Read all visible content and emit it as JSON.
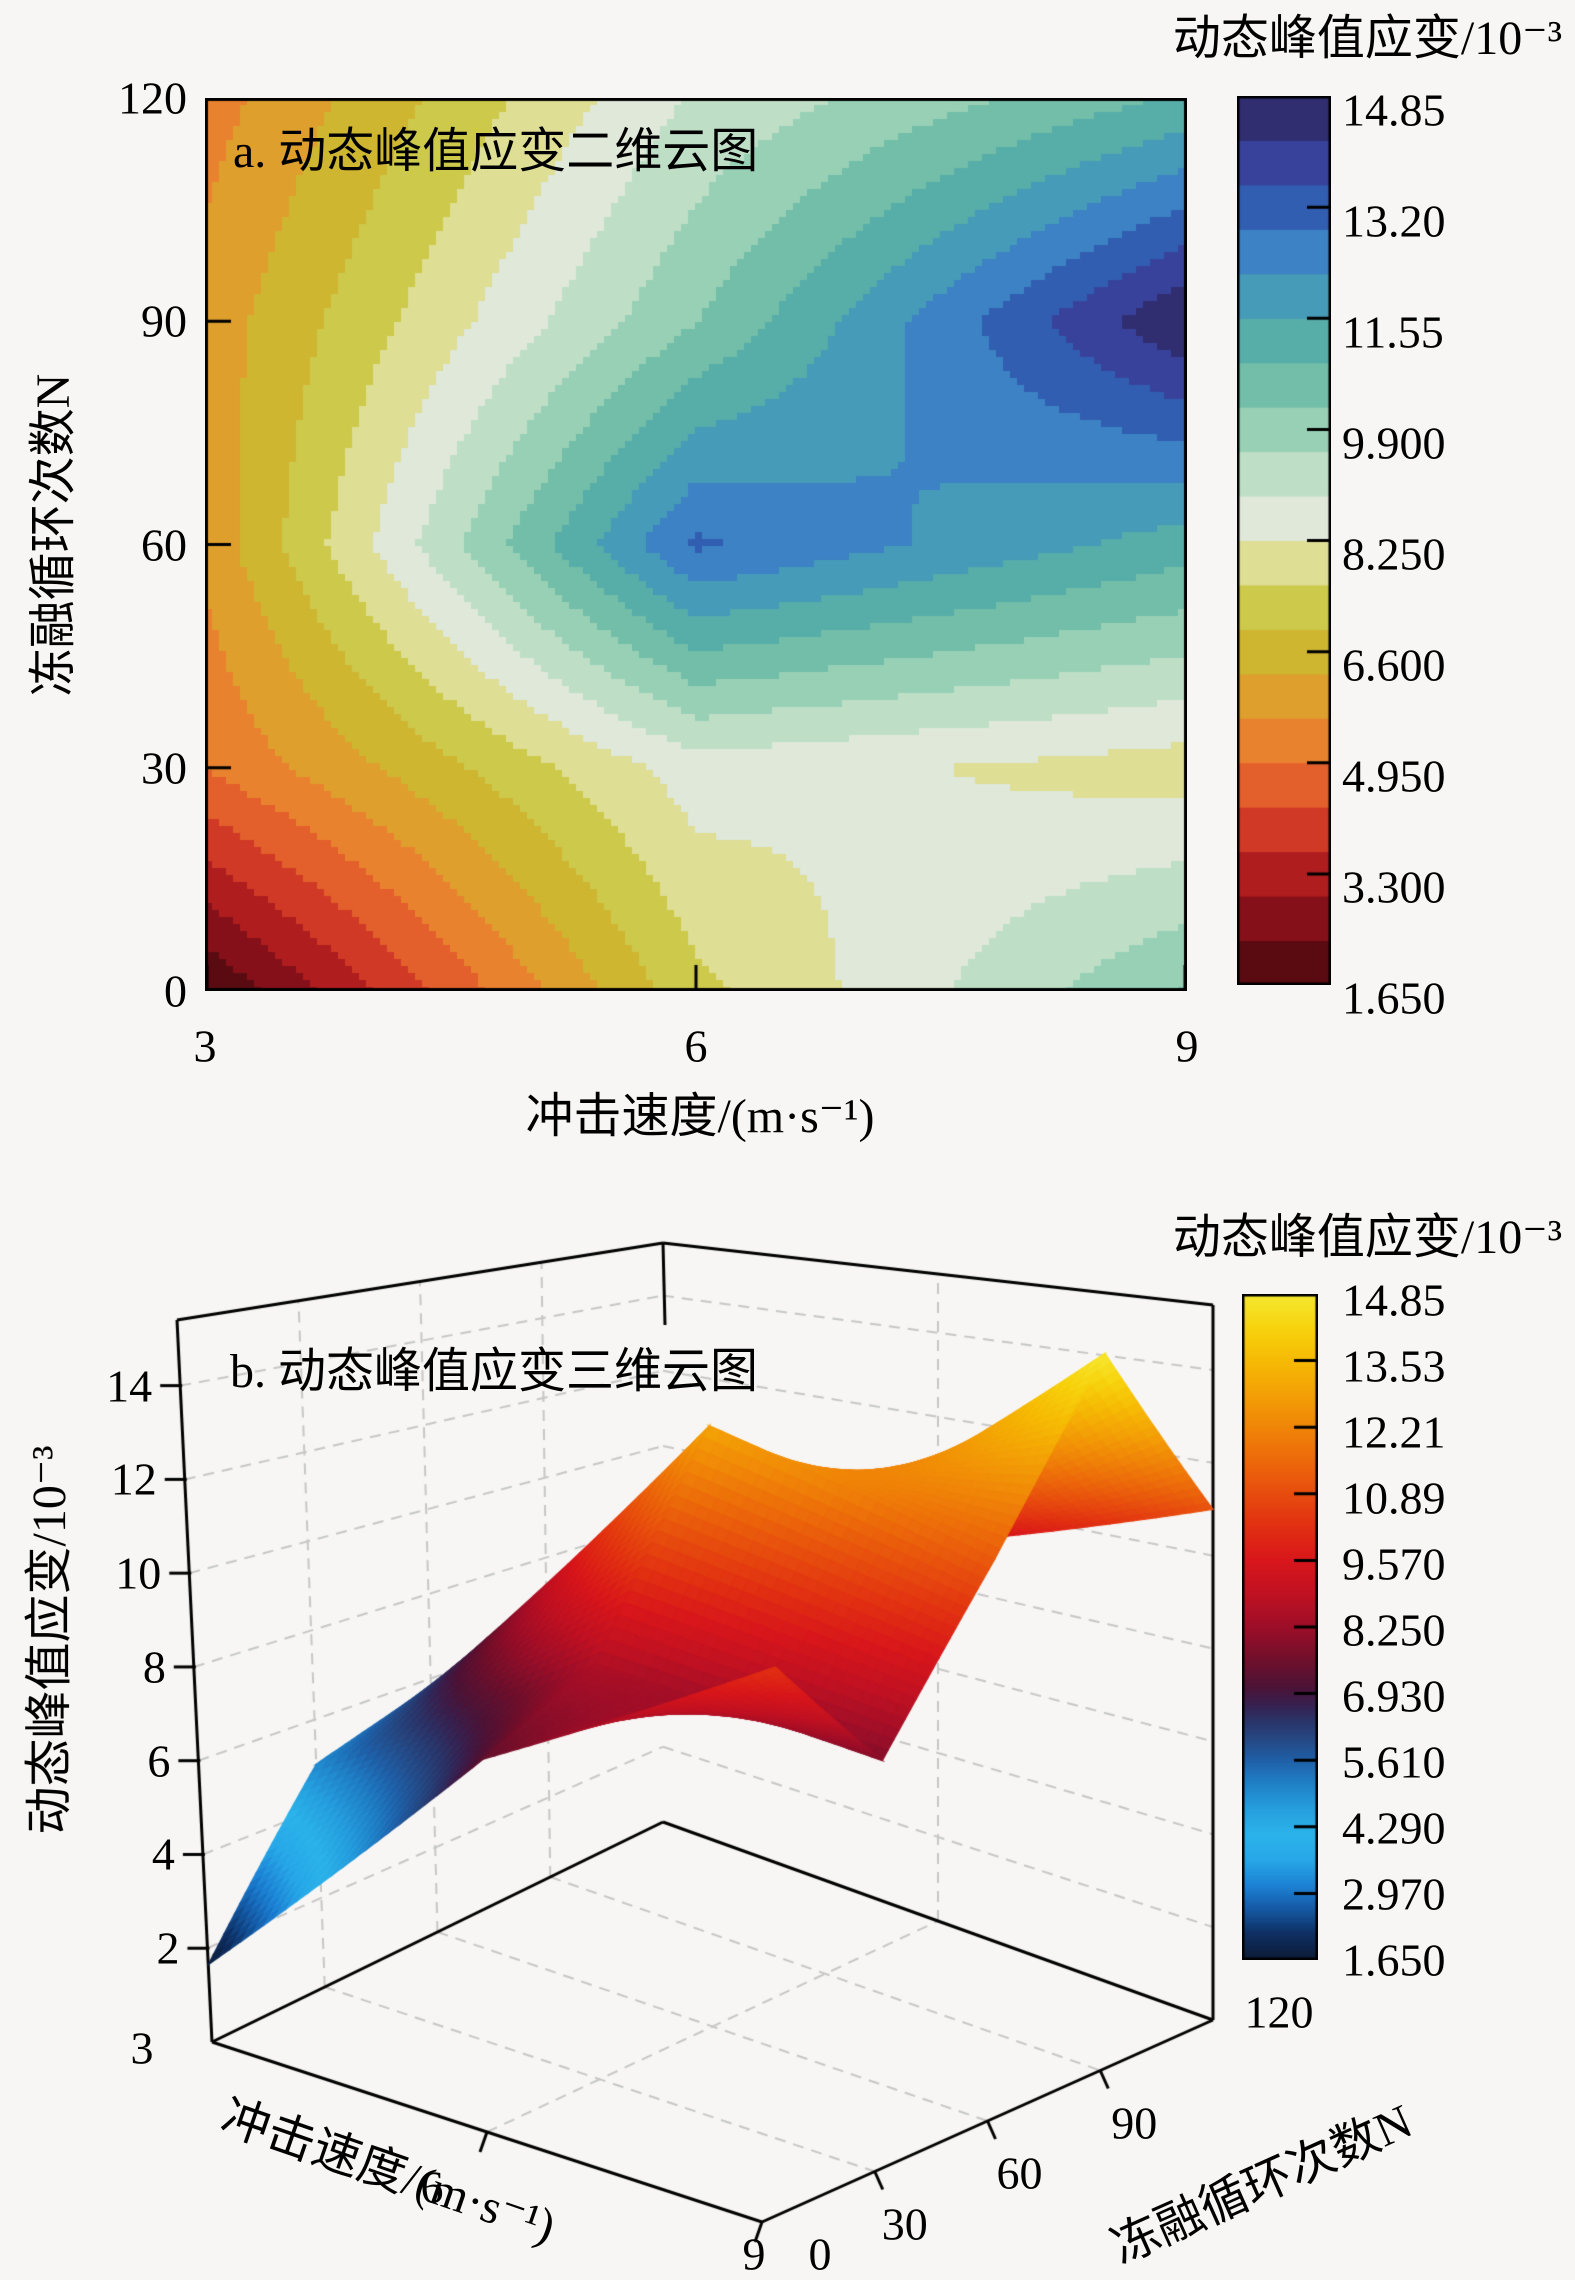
{
  "page": {
    "background": "#f7f6f4",
    "text_color": "#000000"
  },
  "chart_data": [
    {
      "id": "contour-2d",
      "type": "heatmap",
      "title": "a. 动态峰值应变二维云图",
      "xlabel": "冲击速度/(m·s⁻¹)",
      "ylabel": "冻融循环次数N",
      "x": [
        3,
        6,
        9
      ],
      "x_tick_labels": [
        "3",
        "6",
        "9"
      ],
      "y": [
        0,
        30,
        60,
        90,
        120
      ],
      "y_tick_labels": [
        "0",
        "30",
        "60",
        "90",
        "120"
      ],
      "rows": "y (N) ascending bottom to top",
      "cols": "x (impact velocity) ascending",
      "values": [
        [
          1.65,
          7.4,
          10.3
        ],
        [
          5.0,
          8.6,
          7.9
        ],
        [
          5.8,
          13.0,
          11.2
        ],
        [
          5.9,
          10.2,
          14.85
        ],
        [
          5.3,
          9.0,
          11.0
        ]
      ],
      "zlim": [
        1.65,
        14.85
      ],
      "contour_levels": 20,
      "grid": false,
      "frame_color": "#000000",
      "colorbar": {
        "title": "动态峰值应变/10⁻³",
        "tick_labels": [
          "14.85",
          "13.20",
          "11.55",
          "9.900",
          "8.250",
          "6.600",
          "4.950",
          "3.300",
          "1.650"
        ],
        "colormap_stops": [
          [
            0.0,
            "#45090e"
          ],
          [
            0.05,
            "#6e0c16"
          ],
          [
            0.1,
            "#9c131c"
          ],
          [
            0.15,
            "#c22621"
          ],
          [
            0.19,
            "#d84427"
          ],
          [
            0.23,
            "#e4632c"
          ],
          [
            0.27,
            "#ea7f2e"
          ],
          [
            0.31,
            "#e3982d"
          ],
          [
            0.35,
            "#d5ab2e"
          ],
          [
            0.39,
            "#c9bc33"
          ],
          [
            0.44,
            "#cfcf55"
          ],
          [
            0.47,
            "#dcdc85"
          ],
          [
            0.5,
            "#e9eadf"
          ],
          [
            0.53,
            "#dde8d8"
          ],
          [
            0.57,
            "#c2e0c8"
          ],
          [
            0.62,
            "#9cd2b8"
          ],
          [
            0.66,
            "#7cc4ab"
          ],
          [
            0.7,
            "#62b5a5"
          ],
          [
            0.75,
            "#4ba4ab"
          ],
          [
            0.79,
            "#4396c0"
          ],
          [
            0.83,
            "#3b7fc4"
          ],
          [
            0.87,
            "#3161b3"
          ],
          [
            0.91,
            "#3a4aa4"
          ],
          [
            0.95,
            "#35348b"
          ],
          [
            1.0,
            "#2a2655"
          ]
        ]
      }
    },
    {
      "id": "surface-3d",
      "type": "surface",
      "title": "b. 动态峰值应变三维云图",
      "xlabel": "冲击速度/(m·s⁻¹)",
      "ylabel": "冻融循环次数N",
      "zlabel": "动态峰值应变/10⁻³",
      "x": [
        3,
        6,
        9
      ],
      "x_tick_labels": [
        "3",
        "6",
        "9"
      ],
      "y": [
        0,
        30,
        60,
        90,
        120
      ],
      "y_tick_labels": [
        "0",
        "30",
        "60",
        "90",
        "120"
      ],
      "z_ticks": [
        2,
        4,
        6,
        8,
        10,
        12,
        14
      ],
      "z_tick_labels": [
        "2",
        "4",
        "6",
        "8",
        "10",
        "12",
        "14"
      ],
      "rows": "y (N) ascending",
      "cols": "x (impact velocity) ascending",
      "values": [
        [
          1.65,
          7.4,
          10.3
        ],
        [
          5.0,
          8.6,
          7.9
        ],
        [
          5.8,
          13.0,
          11.2
        ],
        [
          5.9,
          10.2,
          14.85
        ],
        [
          5.3,
          9.0,
          11.0
        ]
      ],
      "zlim": [
        1.65,
        14.85
      ],
      "box_top": 15.4,
      "grid_dashed": true,
      "grid_color": "#c6c6c6",
      "frame_color": "#000000",
      "colorbar": {
        "title": "动态峰值应变/10⁻³",
        "tick_labels": [
          "14.85",
          "13.53",
          "12.21",
          "10.89",
          "9.570",
          "8.250",
          "6.930",
          "5.610",
          "4.290",
          "2.970",
          "1.650"
        ],
        "colormap_stops": [
          [
            0.0,
            "#0b1a35"
          ],
          [
            0.04,
            "#0f2f63"
          ],
          [
            0.08,
            "#155ca8"
          ],
          [
            0.11,
            "#1c7fd2"
          ],
          [
            0.15,
            "#27a7e8"
          ],
          [
            0.19,
            "#2bb3ea"
          ],
          [
            0.23,
            "#259ddd"
          ],
          [
            0.27,
            "#1f7dc4"
          ],
          [
            0.3,
            "#1f60a8"
          ],
          [
            0.33,
            "#254a86"
          ],
          [
            0.36,
            "#2a3468"
          ],
          [
            0.385,
            "#38204e"
          ],
          [
            0.41,
            "#4c1336"
          ],
          [
            0.45,
            "#6f0f2b"
          ],
          [
            0.5,
            "#9d0e28"
          ],
          [
            0.55,
            "#c01122"
          ],
          [
            0.6,
            "#d8161b"
          ],
          [
            0.65,
            "#e12f12"
          ],
          [
            0.7,
            "#e74c0e"
          ],
          [
            0.75,
            "#ec690a"
          ],
          [
            0.8,
            "#f08508"
          ],
          [
            0.85,
            "#f3a006"
          ],
          [
            0.9,
            "#f6ba04"
          ],
          [
            0.95,
            "#f7d30e"
          ],
          [
            1.0,
            "#f5e831"
          ]
        ]
      }
    }
  ]
}
